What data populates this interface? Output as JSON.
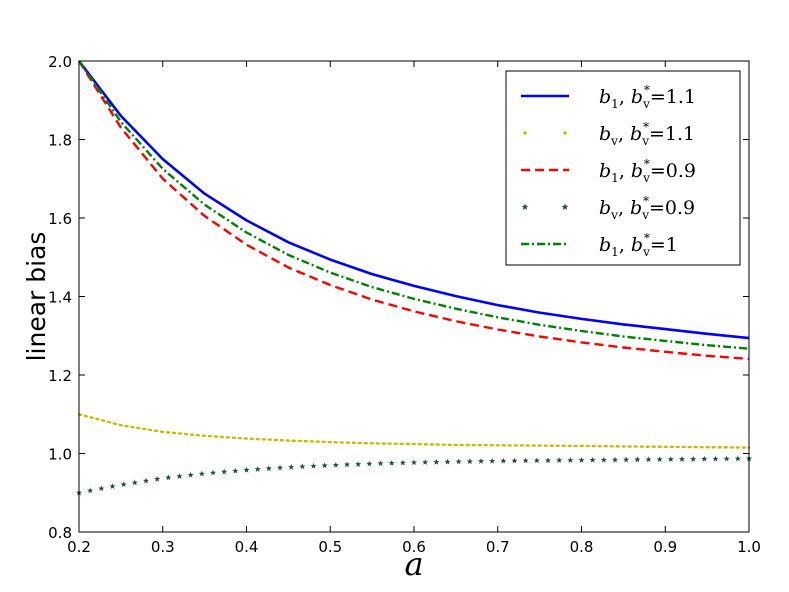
{
  "chart_data": {
    "type": "line",
    "title": "",
    "xlabel": "a",
    "ylabel": "linear bias",
    "xlim": [
      0.2,
      1.0
    ],
    "ylim": [
      0.8,
      2.0
    ],
    "xticks": [
      "0.2",
      "0.3",
      "0.4",
      "0.5",
      "0.6",
      "0.7",
      "0.8",
      "0.9",
      "1.0"
    ],
    "yticks": [
      "0.8",
      "1.0",
      "1.2",
      "1.4",
      "1.6",
      "1.8",
      "2.0"
    ],
    "grid": false,
    "legend_position": "top-right",
    "x": [
      0.2,
      0.25,
      0.3,
      0.35,
      0.4,
      0.45,
      0.5,
      0.55,
      0.6,
      0.65,
      0.7,
      0.75,
      0.8,
      0.85,
      0.9,
      0.95,
      1.0
    ],
    "series": [
      {
        "name": "b1, bv* =1.1",
        "legend": {
          "var": "b",
          "sub": "1",
          "sep": ", ",
          "star_sub": "v",
          "value": "=1.1"
        },
        "color": "#0000ff",
        "style": "solid",
        "values": [
          2.0,
          1.86,
          1.75,
          1.662,
          1.594,
          1.538,
          1.494,
          1.457,
          1.427,
          1.401,
          1.378,
          1.359,
          1.343,
          1.329,
          1.317,
          1.305,
          1.294
        ]
      },
      {
        "name": "bv, bv* =1.1",
        "legend": {
          "var": "b",
          "sub": "v",
          "sep": ",  ",
          "star_sub": "v",
          "value": "=1.1"
        },
        "color": "#bfbf00",
        "style": "dotted",
        "values": [
          1.1,
          1.072,
          1.055,
          1.045,
          1.038,
          1.033,
          1.029,
          1.026,
          1.024,
          1.022,
          1.021,
          1.02,
          1.019,
          1.018,
          1.017,
          1.016,
          1.015
        ]
      },
      {
        "name": "b1, bv* =0.9",
        "legend": {
          "var": "b",
          "sub": "1",
          "sep": ", ",
          "star_sub": "v",
          "value": "=0.9"
        },
        "color": "#ff0000",
        "style": "dashed",
        "values": [
          2.0,
          1.83,
          1.7,
          1.605,
          1.532,
          1.474,
          1.429,
          1.392,
          1.362,
          1.337,
          1.316,
          1.298,
          1.283,
          1.27,
          1.259,
          1.249,
          1.241
        ]
      },
      {
        "name": "bv, bv* =0.9",
        "legend": {
          "var": "b",
          "sub": "v",
          "sep": ",  ",
          "star_sub": "v",
          "value": "=0.9"
        },
        "color": "#1f4f3f",
        "style": "star",
        "values": [
          0.9,
          0.92,
          0.937,
          0.949,
          0.958,
          0.965,
          0.97,
          0.974,
          0.977,
          0.979,
          0.981,
          0.982,
          0.983,
          0.984,
          0.985,
          0.986,
          0.987
        ]
      },
      {
        "name": "b1, bv* =1",
        "legend": {
          "var": "b",
          "sub": "1",
          "sep": ", ",
          "star_sub": "v",
          "value": "=1"
        },
        "color": "#008000",
        "style": "dashdot",
        "values": [
          2.0,
          1.845,
          1.725,
          1.634,
          1.563,
          1.506,
          1.461,
          1.424,
          1.394,
          1.369,
          1.347,
          1.328,
          1.312,
          1.298,
          1.287,
          1.276,
          1.267
        ]
      }
    ]
  }
}
